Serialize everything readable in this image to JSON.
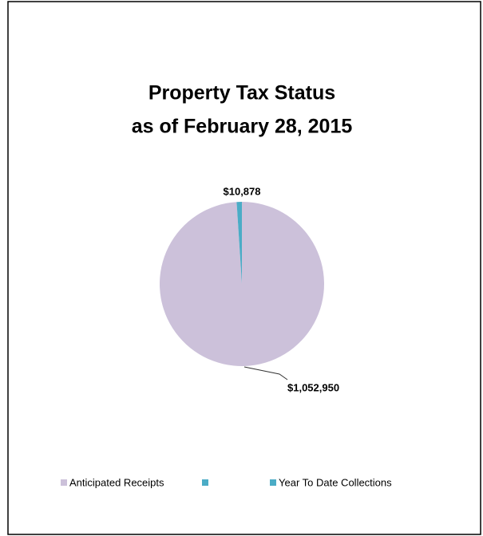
{
  "chart_data": {
    "type": "pie",
    "title": [
      "Property Tax Status",
      "as of February 28, 2015"
    ],
    "categories": [
      "Anticipated Receipts",
      null,
      "Year To Date Collections"
    ],
    "values": [
      1052950,
      null,
      10878
    ],
    "value_labels": [
      "$1,052,950",
      null,
      "$10,878"
    ],
    "colors": [
      "#ccc1da",
      "#4bacc6",
      "#4bacc6"
    ],
    "legend": "bottom"
  }
}
